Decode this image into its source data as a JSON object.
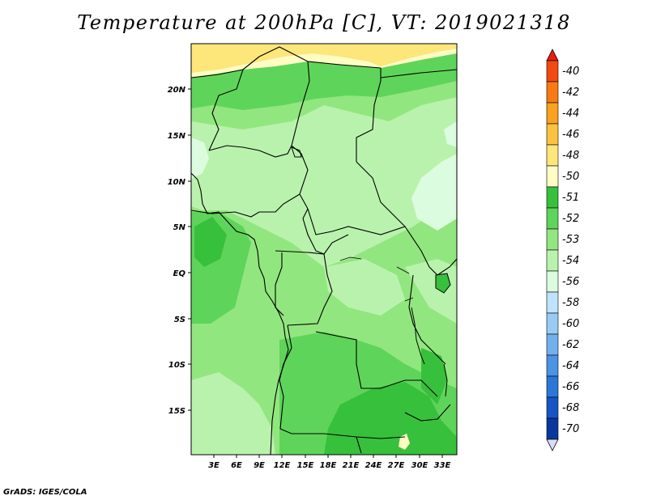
{
  "title": "Temperature at 200hPa [C], VT: 2019021318",
  "credit": "GrADS: IGES/COLA",
  "map": {
    "lon_labels": [
      "3E",
      "6E",
      "9E",
      "12E",
      "15E",
      "18E",
      "21E",
      "24E",
      "27E",
      "30E",
      "33E"
    ],
    "lat_labels": [
      "20N",
      "15N",
      "10N",
      "5N",
      "EQ",
      "5S",
      "10S",
      "15S"
    ]
  },
  "colorbar": {
    "labels": [
      "-40",
      "-42",
      "-44",
      "-46",
      "-48",
      "-50",
      "-51",
      "-52",
      "-53",
      "-54",
      "-56",
      "-58",
      "-60",
      "-62",
      "-64",
      "-66",
      "-68",
      "-70"
    ],
    "colors": [
      "#e8200c",
      "#f24a10",
      "#f77a14",
      "#faa11e",
      "#fcc23f",
      "#fde67a",
      "#fffcc4",
      "#37c03c",
      "#5fd45a",
      "#92e67f",
      "#b9f2ad",
      "#dcfce0",
      "#bfe3fa",
      "#98cbf4",
      "#71b0ec",
      "#4b93e3",
      "#2c76d8",
      "#1555c4",
      "#0a379e",
      "#061a6e",
      "#dcdcf4"
    ]
  },
  "colors": {
    "sea": "#5fd45a",
    "sahara": "#fde67a",
    "sahel": "#fffcc4",
    "light_green": "#b9f2ad",
    "mid_green": "#92e67f",
    "dark_green": "#37c03c",
    "pale_blue": "#dcfce0"
  }
}
